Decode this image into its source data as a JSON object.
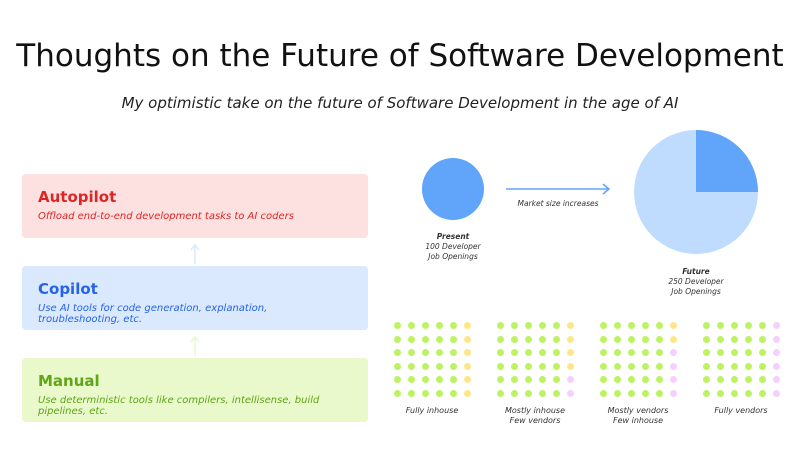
{
  "title": "Thoughts on the Future of Software Development",
  "subtitle": "My optimistic take on the future of Software Development in the age of AI",
  "levels": [
    {
      "name": "Autopilot",
      "description": "Offload end-to-end development tasks to AI coders",
      "color": "#dc2626",
      "bg": "#fde1e1"
    },
    {
      "name": "Copilot",
      "description": "Use AI tools for code generation, explanation, troubleshooting, etc.",
      "color": "#2563eb",
      "bg": "#dbe9fe"
    },
    {
      "name": "Manual",
      "description": "Use deterministic tools like compilers, intellisense, build pipelines, etc.",
      "color": "#5fa516",
      "bg": "#e9f9cb"
    }
  ],
  "market": {
    "present": {
      "label": "Present",
      "line1": "100 Developer",
      "line2": "Job Openings",
      "value": 100
    },
    "future": {
      "label": "Future",
      "line1": "250 Developer",
      "line2": "Job Openings",
      "value": 250
    },
    "arrow_label": "Market size increases",
    "colors": {
      "present": "#60a5fa",
      "future_light": "#bfdbfe"
    }
  },
  "grids": [
    {
      "line1": "Fully inhouse",
      "line2": "",
      "last_column": [
        "yellow",
        "yellow",
        "yellow",
        "yellow",
        "yellow",
        "yellow"
      ]
    },
    {
      "line1": "Mostly inhouse",
      "line2": "Few vendors",
      "last_column": [
        "yellow",
        "yellow",
        "yellow",
        "yellow",
        "pink",
        "pink"
      ]
    },
    {
      "line1": "Mostly vendors",
      "line2": "Few inhouse",
      "last_column": [
        "yellow",
        "yellow",
        "pink",
        "pink",
        "pink",
        "pink"
      ]
    },
    {
      "line1": "Fully vendors",
      "line2": "",
      "last_column": [
        "pink",
        "pink",
        "pink",
        "pink",
        "pink",
        "pink"
      ]
    }
  ],
  "dot_colors": {
    "green": "#bef264",
    "yellow": "#fde68a",
    "pink": "#f5d0fe"
  }
}
